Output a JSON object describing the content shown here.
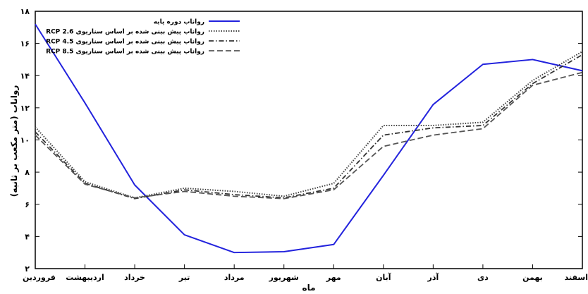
{
  "chart_data": {
    "type": "line",
    "title": "",
    "xlabel": "ماه",
    "ylabel": "رواناب (متر مکعب بر ثانیه)",
    "ylim": [
      2,
      18
    ],
    "yticks": [
      "۲",
      "۴",
      "۶",
      "۸",
      "۱۰",
      "۱۲",
      "۱۴",
      "۱۶",
      "۱۸"
    ],
    "grid": false,
    "legend_position": "top-left",
    "categories": [
      "فروردین",
      "اردیبهشت",
      "خرداد",
      "تیر",
      "مرداد",
      "شهریور",
      "مهر",
      "آبان",
      "آذر",
      "دی",
      "بهمن",
      "اسفند"
    ],
    "series": [
      {
        "name": "رواناب دوره پایه",
        "color": "#2222dd",
        "dash": "solid",
        "values": [
          17.2,
          12.3,
          7.2,
          4.1,
          3.0,
          3.05,
          3.5,
          7.8,
          12.2,
          14.7,
          15.0,
          14.3
        ]
      },
      {
        "name": "RCP 2.6 رواناب پیش بینی شده بر اساس سناریوی",
        "color": "#444444",
        "dash": "dotted",
        "values": [
          10.8,
          7.4,
          6.4,
          7.0,
          6.8,
          6.5,
          7.3,
          10.9,
          10.9,
          11.1,
          13.7,
          15.5
        ]
      },
      {
        "name": "RCP 4.5 رواناب پیش بینی شده بر اساس سناریوی",
        "color": "#333333",
        "dash": "dashdot",
        "values": [
          10.5,
          7.3,
          6.35,
          6.9,
          6.6,
          6.4,
          7.0,
          10.3,
          10.75,
          10.9,
          13.5,
          15.3
        ]
      },
      {
        "name": "RCP 8.5 رواناب پیش بینی شده بر اساس سناریوی",
        "color": "#555555",
        "dash": "dashed",
        "values": [
          10.3,
          7.25,
          6.4,
          6.8,
          6.5,
          6.35,
          6.9,
          9.6,
          10.3,
          10.7,
          13.4,
          14.2
        ]
      }
    ]
  }
}
